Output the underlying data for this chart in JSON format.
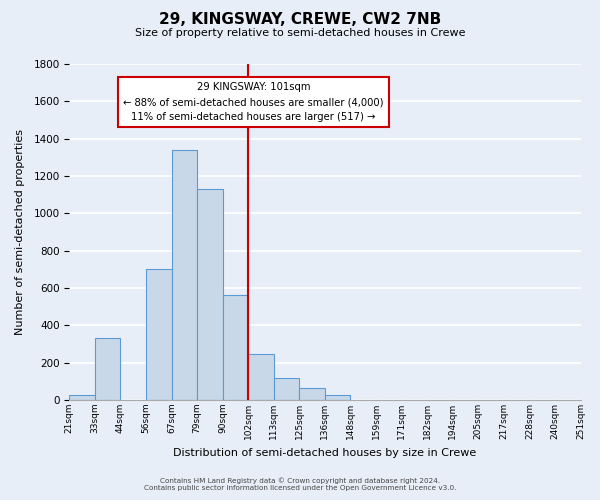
{
  "title": "29, KINGSWAY, CREWE, CW2 7NB",
  "subtitle": "Size of property relative to semi-detached houses in Crewe",
  "xlabel": "Distribution of semi-detached houses by size in Crewe",
  "ylabel": "Number of semi-detached properties",
  "bin_labels": [
    "21sqm",
    "33sqm",
    "44sqm",
    "56sqm",
    "67sqm",
    "79sqm",
    "90sqm",
    "102sqm",
    "113sqm",
    "125sqm",
    "136sqm",
    "148sqm",
    "159sqm",
    "171sqm",
    "182sqm",
    "194sqm",
    "205sqm",
    "217sqm",
    "228sqm",
    "240sqm",
    "251sqm"
  ],
  "bar_heights": [
    25,
    330,
    0,
    700,
    1340,
    1130,
    560,
    245,
    120,
    65,
    25,
    0,
    0,
    0,
    0,
    0,
    0,
    0,
    0,
    0
  ],
  "bar_color": "#c8d8e8",
  "bar_edge_color": "#5b9bd5",
  "vline_color": "#cc0000",
  "annotation_title": "29 KINGSWAY: 101sqm",
  "annotation_line1": "← 88% of semi-detached houses are smaller (4,000)",
  "annotation_line2": "11% of semi-detached houses are larger (517) →",
  "annotation_box_color": "#ffffff",
  "annotation_box_edge": "#cc0000",
  "footer_line1": "Contains HM Land Registry data © Crown copyright and database right 2024.",
  "footer_line2": "Contains public sector information licensed under the Open Government Licence v3.0.",
  "ylim": [
    0,
    1800
  ],
  "background_color": "#e8eef8",
  "grid_color": "#ffffff"
}
